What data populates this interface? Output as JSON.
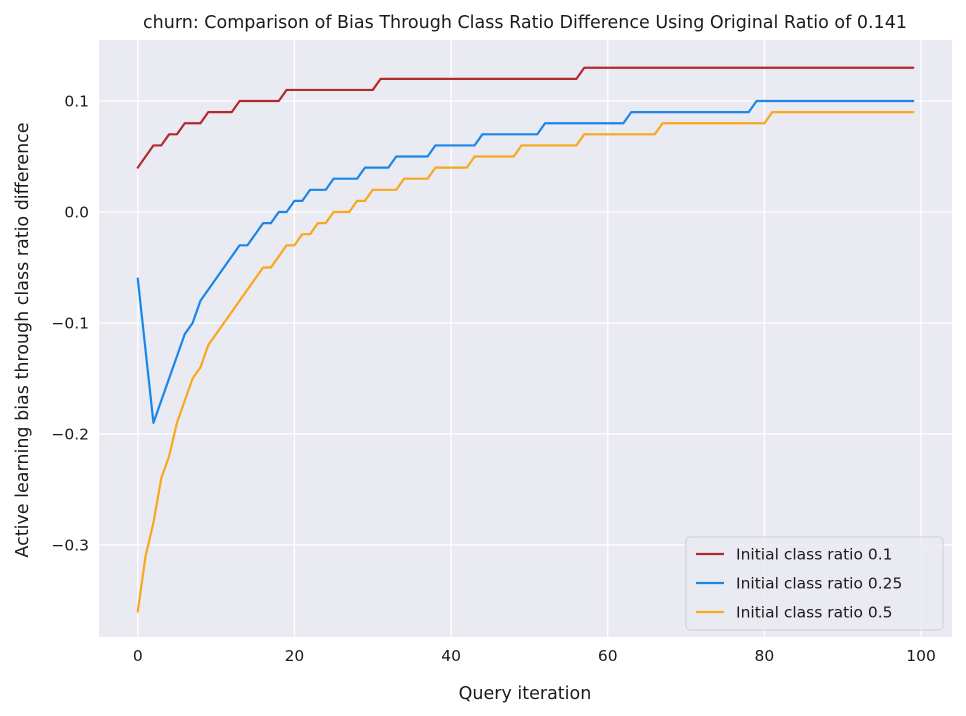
{
  "chart_data": {
    "type": "line",
    "title": "churn: Comparison of Bias Through Class Ratio Difference Using Original Ratio of 0.141",
    "xlabel": "Query iteration",
    "ylabel": "Active learning bias through class ratio difference",
    "xlim": [
      -4.95,
      103.95
    ],
    "ylim": [
      -0.383,
      0.155
    ],
    "xticks": [
      0,
      20,
      40,
      60,
      80,
      100
    ],
    "xtick_labels": [
      "0",
      "20",
      "40",
      "60",
      "80",
      "100"
    ],
    "yticks": [
      -0.3,
      -0.2,
      -0.1,
      0.0,
      0.1
    ],
    "ytick_labels": [
      "−0.3",
      "−0.2",
      "−0.1",
      "0.0",
      "0.1"
    ],
    "grid": true,
    "legend_position": "lower-right",
    "background_color": "#eaeaf2",
    "series": [
      {
        "name": "Initial class ratio 0.1",
        "color": "#b22a2e",
        "points": [
          [
            0,
            0.04
          ],
          [
            2,
            0.06
          ],
          [
            3,
            0.06
          ],
          [
            4,
            0.07
          ],
          [
            5,
            0.07
          ],
          [
            6,
            0.08
          ],
          [
            8,
            0.08
          ],
          [
            9,
            0.09
          ],
          [
            12,
            0.09
          ],
          [
            13,
            0.1
          ],
          [
            18,
            0.1
          ],
          [
            19,
            0.11
          ],
          [
            30,
            0.11
          ],
          [
            31,
            0.12
          ],
          [
            56,
            0.12
          ],
          [
            57,
            0.13
          ],
          [
            99,
            0.13
          ]
        ]
      },
      {
        "name": "Initial class ratio 0.25",
        "color": "#1a86e8",
        "points": [
          [
            0,
            -0.06
          ],
          [
            2,
            -0.19
          ],
          [
            6,
            -0.11
          ],
          [
            7,
            -0.1
          ],
          [
            8,
            -0.08
          ],
          [
            13,
            -0.03
          ],
          [
            14,
            -0.03
          ],
          [
            16,
            -0.01
          ],
          [
            17,
            -0.01
          ],
          [
            18,
            0.0
          ],
          [
            19,
            0.0
          ],
          [
            20,
            0.01
          ],
          [
            21,
            0.01
          ],
          [
            22,
            0.02
          ],
          [
            24,
            0.02
          ],
          [
            25,
            0.03
          ],
          [
            28,
            0.03
          ],
          [
            29,
            0.04
          ],
          [
            32,
            0.04
          ],
          [
            33,
            0.05
          ],
          [
            37,
            0.05
          ],
          [
            38,
            0.06
          ],
          [
            43,
            0.06
          ],
          [
            44,
            0.07
          ],
          [
            51,
            0.07
          ],
          [
            52,
            0.08
          ],
          [
            62,
            0.08
          ],
          [
            63,
            0.09
          ],
          [
            78,
            0.09
          ],
          [
            79,
            0.1
          ],
          [
            99,
            0.1
          ]
        ]
      },
      {
        "name": "Initial class ratio 0.5",
        "color": "#f7a81b",
        "points": [
          [
            0,
            -0.36
          ],
          [
            1,
            -0.31
          ],
          [
            2,
            -0.28
          ],
          [
            3,
            -0.24
          ],
          [
            4,
            -0.22
          ],
          [
            5,
            -0.19
          ],
          [
            6,
            -0.17
          ],
          [
            7,
            -0.15
          ],
          [
            8,
            -0.14
          ],
          [
            9,
            -0.12
          ],
          [
            16,
            -0.05
          ],
          [
            17,
            -0.05
          ],
          [
            19,
            -0.03
          ],
          [
            20,
            -0.03
          ],
          [
            21,
            -0.02
          ],
          [
            22,
            -0.02
          ],
          [
            23,
            -0.01
          ],
          [
            24,
            -0.01
          ],
          [
            25,
            0.0
          ],
          [
            27,
            0.0
          ],
          [
            28,
            0.01
          ],
          [
            29,
            0.01
          ],
          [
            30,
            0.02
          ],
          [
            33,
            0.02
          ],
          [
            34,
            0.03
          ],
          [
            37,
            0.03
          ],
          [
            38,
            0.04
          ],
          [
            42,
            0.04
          ],
          [
            43,
            0.05
          ],
          [
            48,
            0.05
          ],
          [
            49,
            0.06
          ],
          [
            56,
            0.06
          ],
          [
            57,
            0.07
          ],
          [
            66,
            0.07
          ],
          [
            67,
            0.08
          ],
          [
            80,
            0.08
          ],
          [
            81,
            0.09
          ],
          [
            99,
            0.09
          ]
        ]
      }
    ]
  }
}
